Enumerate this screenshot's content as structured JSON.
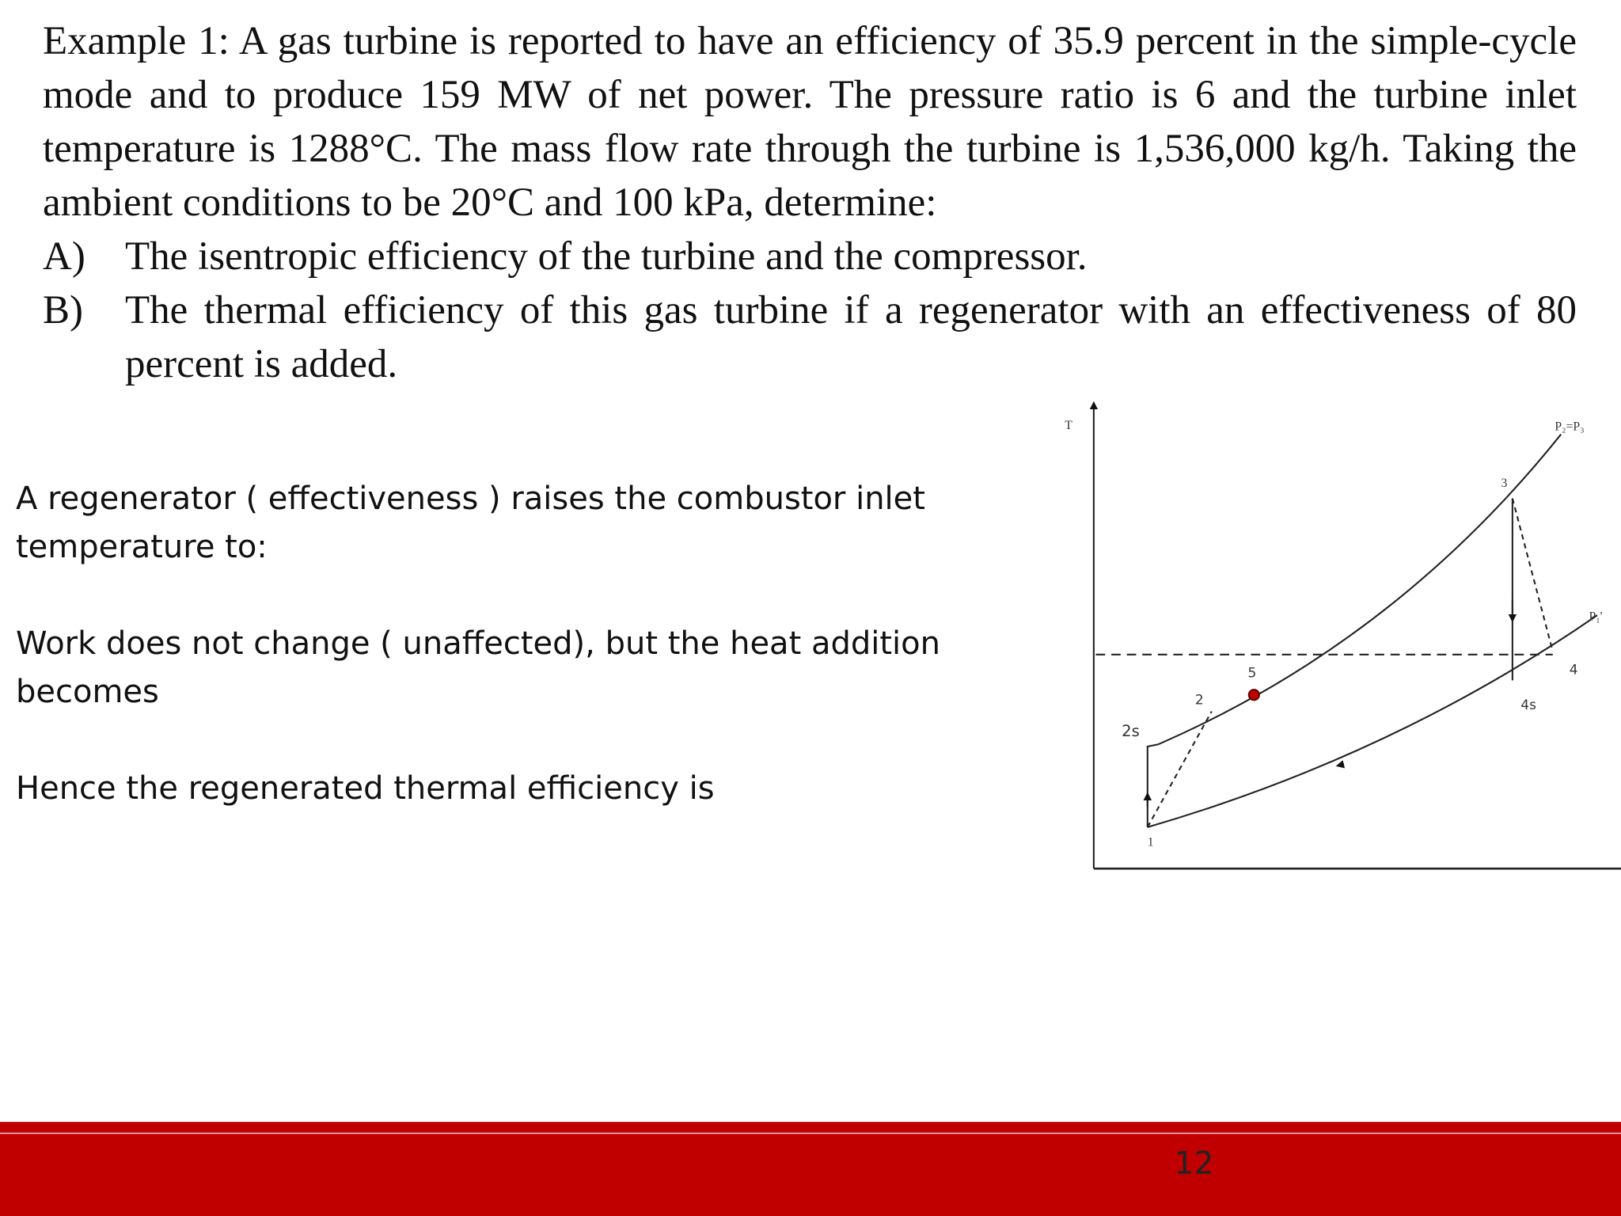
{
  "problem": {
    "intro": "Example 1: A gas turbine is reported to have an efficiency of 35.9 percent in the simple-cycle mode and to produce 159 MW of net power. The pressure ratio is 6 and the turbine inlet temperature is 1288°C. The mass flow rate through the turbine is 1,536,000 kg/h. Taking the ambient conditions to be 20°C and 100 kPa, determine:",
    "items": [
      {
        "label": "A)",
        "text": "The isentropic efficiency of the turbine and the compressor."
      },
      {
        "label": "B)",
        "text": "The thermal efficiency of this gas turbine if a regenerator with an effectiveness of 80 percent is added."
      }
    ]
  },
  "notes": [
    "A regenerator ( effectiveness ) raises the combustor inlet temperature to:",
    "Work does not change ( unaffected), but the heat addition becomes",
    "Hence the regenerated thermal efficiency is"
  ],
  "diagram": {
    "axis_label": "T",
    "labels": [
      "P₂=P₃",
      "P₁'",
      "1",
      "2",
      "2s",
      "3",
      "4",
      "4s",
      "5"
    ]
  },
  "footer": {
    "page_number": "12"
  }
}
